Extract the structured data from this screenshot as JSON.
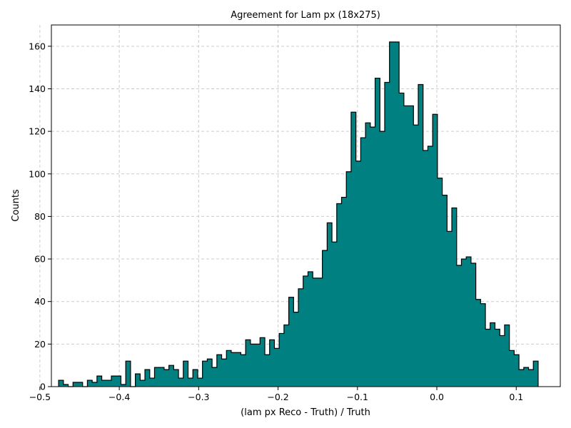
{
  "chart_data": {
    "type": "bar",
    "title": "Agreement for Lam px (18x275)",
    "xlabel": "(lam px Reco - Truth) / Truth",
    "ylabel": "Counts",
    "xlim": [
      -0.4855,
      0.1555
    ],
    "ylim": [
      0,
      170
    ],
    "xticks": [
      -0.5,
      -0.4,
      -0.3,
      -0.2,
      -0.1,
      0.0,
      0.1
    ],
    "xtick_labels": [
      "−0.5",
      "−0.4",
      "−0.3",
      "−0.2",
      "−0.1",
      "0.0",
      "0.1"
    ],
    "yticks": [
      0,
      20,
      40,
      60,
      80,
      100,
      120,
      140,
      160
    ],
    "ytick_labels": [
      "0",
      "20",
      "40",
      "60",
      "80",
      "100",
      "120",
      "140",
      "160"
    ],
    "grid": true,
    "legend": "none",
    "bin_start": -0.4764,
    "bin_width": 0.00604,
    "counts": [
      3,
      1,
      0,
      2,
      2,
      0,
      3,
      2,
      5,
      3,
      3,
      5,
      5,
      1,
      12,
      0,
      6,
      3,
      8,
      4,
      9,
      9,
      8,
      10,
      8,
      4,
      12,
      4,
      8,
      4,
      12,
      13,
      9,
      15,
      13,
      17,
      16,
      16,
      15,
      22,
      20,
      20,
      23,
      15,
      22,
      18,
      25,
      29,
      42,
      35,
      46,
      52,
      54,
      51,
      51,
      64,
      77,
      68,
      86,
      89,
      101,
      129,
      106,
      117,
      124,
      122,
      145,
      120,
      143,
      162,
      162,
      138,
      132,
      132,
      123,
      142,
      111,
      113,
      128,
      98,
      90,
      73,
      84,
      57,
      60,
      61,
      58,
      41,
      39,
      27,
      30,
      27,
      24,
      29,
      17,
      15,
      8,
      9,
      8,
      12
    ],
    "colors": {
      "fill": "#008080",
      "edge": "#000000",
      "grid": "#cccccc"
    }
  }
}
